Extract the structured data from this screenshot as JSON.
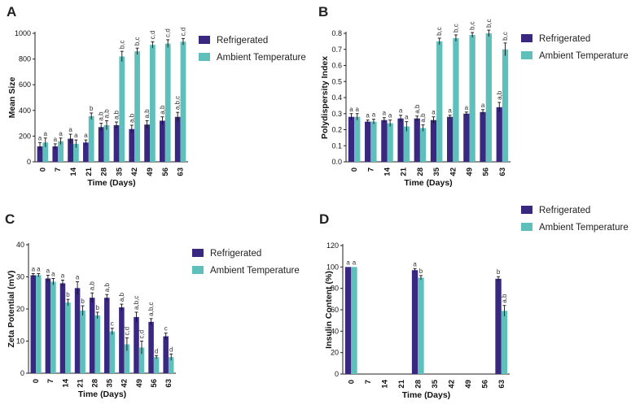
{
  "colors": {
    "refrigerated": "#3a2880",
    "ambient": "#5fbfbb",
    "axis": "#222222"
  },
  "chart_data": [
    {
      "panel": "A",
      "type": "bar",
      "xlabel": "Time (Days)",
      "ylabel": "Mean Size",
      "categories": [
        "0",
        "7",
        "14",
        "21",
        "28",
        "35",
        "42",
        "49",
        "56",
        "63"
      ],
      "ylim": [
        0,
        1000
      ],
      "yticks": [
        "0",
        "200",
        "400",
        "600",
        "800",
        "1000"
      ],
      "series": [
        {
          "name": "Refrigerated",
          "values": [
            120,
            120,
            180,
            150,
            270,
            285,
            255,
            290,
            320,
            350
          ],
          "errors": [
            30,
            20,
            35,
            20,
            30,
            25,
            30,
            30,
            30,
            35
          ]
        },
        {
          "name": "Ambient Temperature",
          "values": [
            150,
            160,
            140,
            355,
            285,
            820,
            860,
            910,
            920,
            935
          ],
          "errors": [
            35,
            25,
            30,
            25,
            35,
            40,
            25,
            25,
            30,
            25
          ]
        }
      ],
      "labels": [
        [
          "a",
          "a"
        ],
        [
          "a",
          "a"
        ],
        [
          "a",
          "a"
        ],
        [
          "a",
          "b"
        ],
        [
          "a,b",
          "a,b"
        ],
        [
          "a,b",
          "b,c"
        ],
        [
          "a,b",
          "b,c"
        ],
        [
          "a,b",
          "c,d"
        ],
        [
          "a,b",
          "c,d"
        ],
        [
          "a,b,c",
          "c,d"
        ]
      ],
      "legend": [
        "Refrigerated",
        "Ambient Temperature"
      ]
    },
    {
      "panel": "B",
      "type": "bar",
      "xlabel": "Time (Days)",
      "ylabel": "Polydispersity Index",
      "categories": [
        "0",
        "7",
        "14",
        "21",
        "28",
        "35",
        "42",
        "49",
        "56",
        "63"
      ],
      "ylim": [
        0,
        0.8
      ],
      "yticks": [
        "0.0",
        "0.1",
        "0.2",
        "0.3",
        "0.4",
        "0.5",
        "0.6",
        "0.7",
        "0.8"
      ],
      "series": [
        {
          "name": "Refrigerated",
          "values": [
            0.28,
            0.25,
            0.26,
            0.27,
            0.27,
            0.26,
            0.28,
            0.3,
            0.31,
            0.34
          ],
          "errors": [
            0.02,
            0.01,
            0.015,
            0.02,
            0.015,
            0.02,
            0.01,
            0.01,
            0.015,
            0.03
          ]
        },
        {
          "name": "Ambient Temperature",
          "values": [
            0.28,
            0.25,
            0.24,
            0.22,
            0.21,
            0.75,
            0.77,
            0.79,
            0.8,
            0.7
          ],
          "errors": [
            0.02,
            0.015,
            0.02,
            0.03,
            0.02,
            0.02,
            0.02,
            0.015,
            0.02,
            0.04
          ]
        }
      ],
      "labels": [
        [
          "a",
          "a"
        ],
        [
          "a",
          "a"
        ],
        [
          "a",
          "a"
        ],
        [
          "a",
          "a"
        ],
        [
          "a,b",
          "a,b"
        ],
        [
          "a",
          "b,c"
        ],
        [
          "a",
          "b,c"
        ],
        [
          "a",
          "b,c"
        ],
        [
          "a",
          "b,c"
        ],
        [
          "a,b",
          "b,c"
        ]
      ],
      "legend": [
        "Refrigerated",
        "Ambient Temperature"
      ]
    },
    {
      "panel": "C",
      "type": "bar",
      "xlabel": "Time (Days)",
      "ylabel": "Zeta Potential (mV)",
      "categories": [
        "0",
        "7",
        "14",
        "21",
        "28",
        "35",
        "42",
        "49",
        "56",
        "63"
      ],
      "ylim": [
        0,
        40
      ],
      "yticks": [
        "0",
        "10",
        "20",
        "30",
        "40"
      ],
      "series": [
        {
          "name": "Refrigerated",
          "values": [
            30.5,
            29.5,
            28,
            26.5,
            23.5,
            23.5,
            20.5,
            17.5,
            16,
            11.5
          ],
          "errors": [
            0.5,
            1,
            1,
            2,
            1.5,
            1,
            1,
            1.5,
            1,
            1
          ]
        },
        {
          "name": "Ambient Temperature",
          "values": [
            30.5,
            28.5,
            22,
            19.5,
            18,
            13,
            9,
            8,
            5,
            5
          ],
          "errors": [
            0.5,
            1,
            1,
            1.5,
            1,
            1,
            2,
            2,
            0.5,
            1
          ]
        }
      ],
      "labels": [
        [
          "a",
          "a"
        ],
        [
          "a",
          "a"
        ],
        [
          "a",
          "b"
        ],
        [
          "a",
          "b"
        ],
        [
          "a,b",
          "b"
        ],
        [
          "a,b",
          "c"
        ],
        [
          "a,b",
          "c,d"
        ],
        [
          "a,b,c",
          "c,d"
        ],
        [
          "a,b,c",
          "d"
        ],
        [
          "c",
          "d"
        ]
      ],
      "legend": [
        "Refrigerated",
        "Ambient Temperature"
      ]
    },
    {
      "panel": "D",
      "type": "bar",
      "xlabel": "Time (Days)",
      "ylabel": "Insulin Content (%)",
      "categories": [
        "0",
        "7",
        "14",
        "21",
        "28",
        "35",
        "42",
        "49",
        "56",
        "63"
      ],
      "ylim": [
        0,
        120
      ],
      "yticks": [
        "0",
        "20",
        "40",
        "60",
        "80",
        "100",
        "120"
      ],
      "series": [
        {
          "name": "Refrigerated",
          "values": [
            100,
            null,
            null,
            null,
            97,
            null,
            null,
            null,
            null,
            89
          ],
          "errors": [
            0,
            0,
            0,
            0,
            1.5,
            0,
            0,
            0,
            0,
            2
          ]
        },
        {
          "name": "Ambient Temperature",
          "values": [
            100,
            null,
            null,
            null,
            90,
            null,
            null,
            null,
            null,
            59
          ],
          "errors": [
            0,
            0,
            0,
            0,
            2,
            0,
            0,
            0,
            0,
            5
          ]
        }
      ],
      "labels": [
        [
          "a",
          "a"
        ],
        [
          "",
          ""
        ],
        [
          "",
          ""
        ],
        [
          "",
          ""
        ],
        [
          "a",
          "b"
        ],
        [
          "",
          ""
        ],
        [
          "",
          ""
        ],
        [
          "",
          ""
        ],
        [
          "",
          ""
        ],
        [
          "b",
          "a,b"
        ]
      ],
      "legend": [
        "Refrigerated",
        "Ambient Temperature"
      ]
    }
  ]
}
